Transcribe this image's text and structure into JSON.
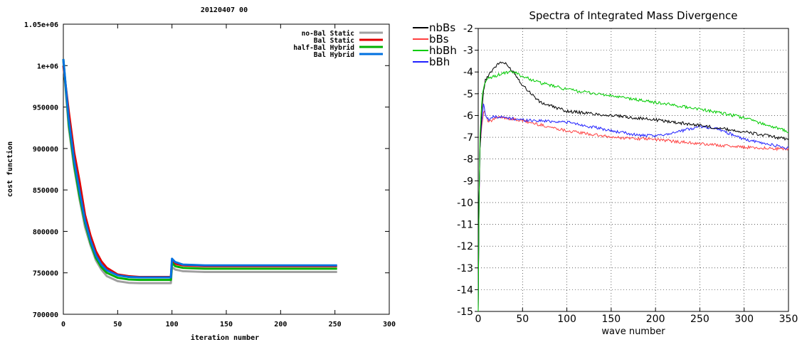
{
  "chart_data": [
    {
      "type": "line",
      "title": "20120407 00",
      "xlabel": "iteration number",
      "ylabel": "cost function",
      "xlim": [
        0,
        300
      ],
      "ylim": [
        700000,
        1050000
      ],
      "xticks": [
        0,
        50,
        100,
        150,
        200,
        250,
        300
      ],
      "yticks": [
        700000,
        750000,
        800000,
        850000,
        900000,
        950000,
        1000000,
        1050000
      ],
      "ytick_labels": [
        "700000",
        "750000",
        "800000",
        "850000",
        "900000",
        "950000",
        "1e+06",
        "1.05e+06"
      ],
      "grid": false,
      "legend_position": "top-right",
      "series": [
        {
          "name": "no-Bal Static",
          "color": "#a0a0a0",
          "x": [
            0,
            5,
            10,
            15,
            20,
            25,
            30,
            35,
            40,
            50,
            60,
            70,
            80,
            99,
            100,
            103,
            110,
            130,
            150,
            200,
            252
          ],
          "values": [
            1005000,
            925000,
            876000,
            838000,
            805000,
            783000,
            765000,
            754000,
            746000,
            740000,
            738000,
            737500,
            737500,
            737500,
            757000,
            754000,
            752000,
            751000,
            751000,
            751000,
            751000
          ]
        },
        {
          "name": "Bal Static",
          "color": "#e00000",
          "x": [
            0,
            5,
            10,
            15,
            20,
            25,
            30,
            35,
            40,
            50,
            60,
            70,
            80,
            99,
            100,
            103,
            110,
            130,
            150,
            200,
            252
          ],
          "values": [
            1000000,
            945000,
            895000,
            860000,
            820000,
            795000,
            776000,
            764000,
            756000,
            748000,
            746000,
            745000,
            745000,
            745000,
            764000,
            761000,
            759000,
            758000,
            758000,
            758000,
            758000
          ]
        },
        {
          "name": "half-Bal Hybrid",
          "color": "#00b000",
          "x": [
            0,
            5,
            10,
            15,
            20,
            25,
            30,
            35,
            40,
            50,
            60,
            70,
            80,
            99,
            100,
            103,
            110,
            130,
            150,
            200,
            252
          ],
          "values": [
            1008000,
            930000,
            880000,
            842000,
            810000,
            786000,
            768000,
            757000,
            750000,
            744000,
            742000,
            741500,
            741500,
            741500,
            762000,
            758000,
            756000,
            755000,
            755000,
            755000,
            755000
          ]
        },
        {
          "name": "Bal Hybrid",
          "color": "#0070e0",
          "x": [
            0,
            5,
            10,
            15,
            20,
            25,
            30,
            35,
            40,
            50,
            60,
            70,
            80,
            99,
            100,
            103,
            110,
            130,
            150,
            200,
            252
          ],
          "values": [
            1008000,
            935000,
            885000,
            848000,
            813000,
            789000,
            771000,
            760000,
            753000,
            747000,
            745000,
            744500,
            744500,
            744500,
            767000,
            763000,
            760000,
            759000,
            759000,
            759000,
            759000
          ]
        }
      ]
    },
    {
      "type": "line",
      "title": "Spectra of Integrated Mass Divergence",
      "xlabel": "wave number",
      "ylabel": "",
      "xlim": [
        0,
        350
      ],
      "ylim": [
        -15,
        -2
      ],
      "xticks": [
        0,
        50,
        100,
        150,
        200,
        250,
        300,
        350
      ],
      "yticks": [
        -15,
        -14,
        -13,
        -12,
        -11,
        -10,
        -9,
        -8,
        -7,
        -6,
        -5,
        -4,
        -3,
        -2
      ],
      "grid": true,
      "legend_position": "top-left (outside)",
      "series": [
        {
          "name": "nbBs",
          "color": "#000000",
          "x": [
            0,
            1,
            2,
            4,
            6,
            8,
            12,
            18,
            25,
            30,
            40,
            50,
            70,
            100,
            150,
            200,
            250,
            300,
            350
          ],
          "values": [
            -15,
            -10,
            -7.5,
            -5.8,
            -4.9,
            -4.4,
            -4.1,
            -3.8,
            -3.55,
            -3.6,
            -4.0,
            -4.6,
            -5.4,
            -5.8,
            -6.0,
            -6.2,
            -6.45,
            -6.75,
            -7.1
          ]
        },
        {
          "name": "bBs",
          "color": "#ff4040",
          "x": [
            0,
            1,
            2,
            4,
            6,
            8,
            10,
            12,
            15,
            20,
            30,
            50,
            100,
            150,
            200,
            250,
            300,
            350
          ],
          "values": [
            -15,
            -10,
            -7.5,
            -6.5,
            -5.8,
            -5.9,
            -6.2,
            -6.3,
            -6.25,
            -6.1,
            -6.1,
            -6.25,
            -6.7,
            -7.0,
            -7.1,
            -7.3,
            -7.45,
            -7.55
          ]
        },
        {
          "name": "hbBh",
          "color": "#00cc00",
          "x": [
            0,
            1,
            2,
            4,
            6,
            8,
            12,
            18,
            25,
            30,
            40,
            50,
            70,
            100,
            150,
            200,
            250,
            300,
            350
          ],
          "values": [
            -15,
            -10,
            -7.0,
            -5.3,
            -4.7,
            -4.45,
            -4.3,
            -4.2,
            -4.1,
            -4.05,
            -4.0,
            -4.2,
            -4.5,
            -4.8,
            -5.1,
            -5.4,
            -5.7,
            -6.1,
            -6.75
          ]
        },
        {
          "name": "bBh",
          "color": "#2020ff",
          "x": [
            0,
            1,
            2,
            4,
            6,
            8,
            10,
            12,
            15,
            20,
            30,
            50,
            100,
            150,
            180,
            200,
            230,
            250,
            270,
            300,
            350
          ],
          "values": [
            -15,
            -10,
            -7.5,
            -6.2,
            -5.5,
            -5.9,
            -6.1,
            -6.2,
            -6.1,
            -6.05,
            -6.1,
            -6.2,
            -6.3,
            -6.7,
            -6.9,
            -6.95,
            -6.7,
            -6.5,
            -6.6,
            -7.1,
            -7.5
          ]
        }
      ]
    }
  ]
}
